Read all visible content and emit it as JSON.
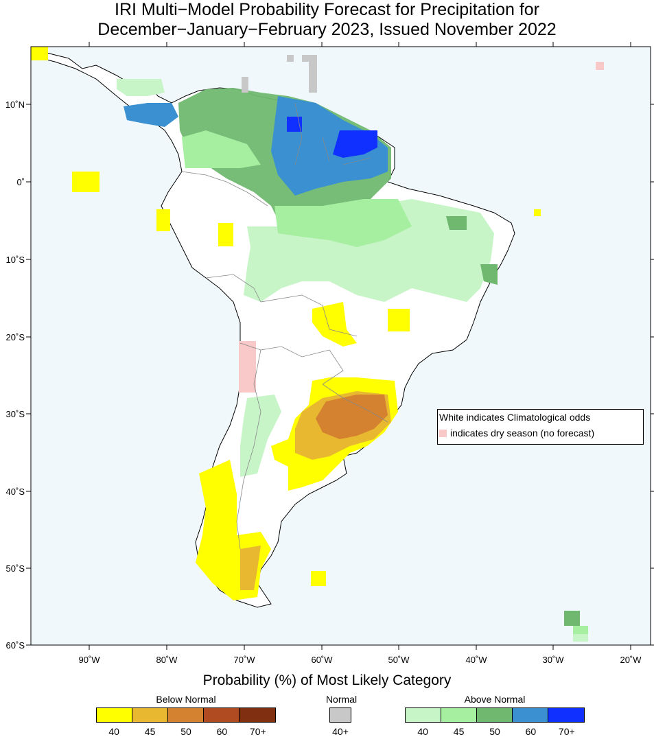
{
  "title": {
    "line1": "IRI Multi−Model Probability Forecast for Precipitation for",
    "line2": "December−January−February 2023, Issued November 2022"
  },
  "axes": {
    "lat_labels": [
      "10˚N",
      "0˚",
      "10˚S",
      "20˚S",
      "30˚S",
      "40˚S",
      "50˚S",
      "60˚S"
    ],
    "lon_labels": [
      "90˚W",
      "80˚W",
      "70˚W",
      "60˚W",
      "50˚W",
      "40˚W",
      "30˚W",
      "20˚W"
    ]
  },
  "legend": {
    "line1": "White indicates Climatological odds",
    "line2": "indicates dry season (no forecast)"
  },
  "colorbar": {
    "title": "Probability (%) of Most Likely Category",
    "below_normal": {
      "label": "Below Normal",
      "ticks": [
        "40",
        "45",
        "50",
        "60",
        "70+"
      ],
      "colors": [
        "#ffff00",
        "#e8b830",
        "#d48230",
        "#b04a20",
        "#803010"
      ]
    },
    "normal": {
      "label": "Normal",
      "ticks": [
        "40+"
      ],
      "colors": [
        "#c8c8c8"
      ]
    },
    "above_normal": {
      "label": "Above Normal",
      "ticks": [
        "40",
        "45",
        "50",
        "60",
        "70+"
      ],
      "colors": [
        "#c8f5c8",
        "#a6eea0",
        "#70b870",
        "#3a90d0",
        "#1030ff"
      ]
    }
  },
  "colors": {
    "ocean": "#f0f8fc",
    "land": "#ffffff",
    "coast": "#000000",
    "border": "#888888",
    "dry_season": "#f9c8c8"
  }
}
